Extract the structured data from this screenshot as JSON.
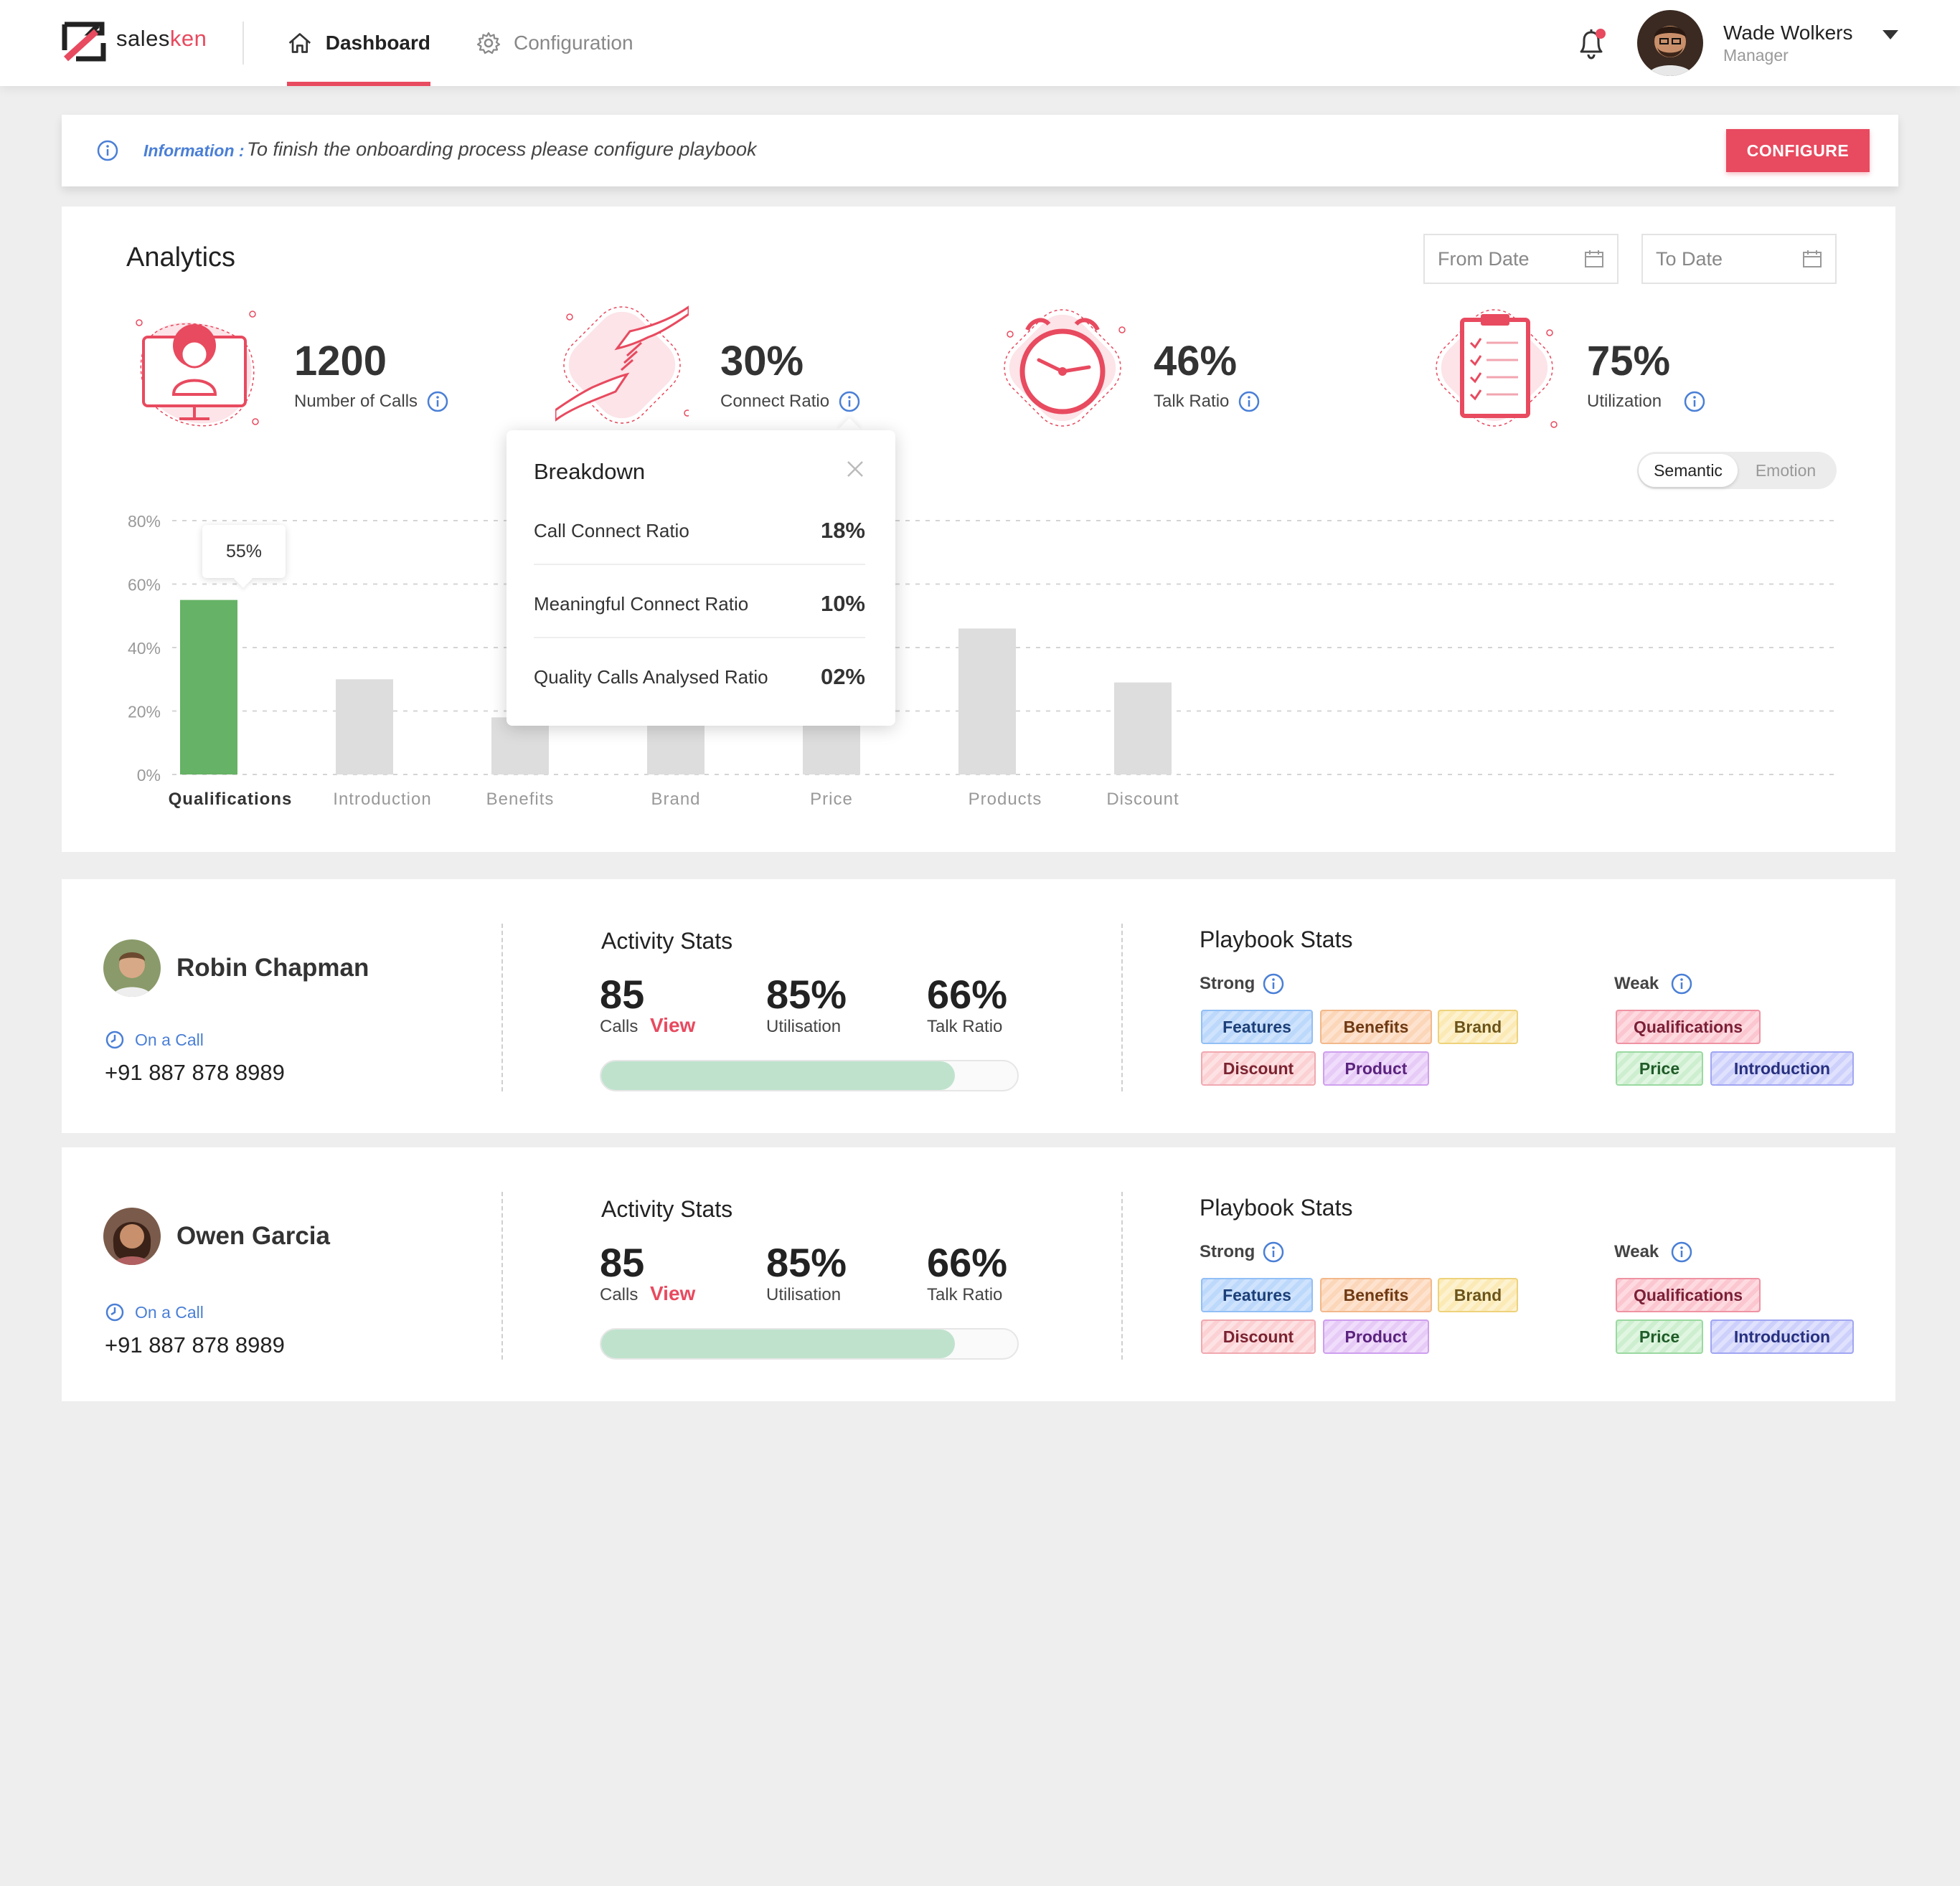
{
  "app": {
    "brand": {
      "part1": "sales",
      "part2": "ken"
    },
    "nav": {
      "dashboard": "Dashboard",
      "configuration": "Configuration"
    },
    "user": {
      "name": "Wade Wolkers",
      "role": "Manager"
    }
  },
  "banner": {
    "label": "Information :",
    "text": "To finish the onboarding process please configure playbook",
    "button": "CONFIGURE"
  },
  "analytics": {
    "title": "Analytics",
    "from_placeholder": "From Date",
    "to_placeholder": "To Date",
    "kpis": [
      {
        "value": "1200",
        "label": "Number of Calls",
        "icon": "headset-agent-icon"
      },
      {
        "value": "30%",
        "label": "Connect Ratio",
        "icon": "handshake-icon"
      },
      {
        "value": "46%",
        "label": "Talk Ratio",
        "icon": "clock-icon"
      },
      {
        "value": "75%",
        "label": "Utilization",
        "icon": "checklist-icon"
      }
    ],
    "toggle": {
      "semantic": "Semantic",
      "emotion": "Emotion",
      "selected": "Semantic"
    },
    "breakdown": {
      "title": "Breakdown",
      "rows": [
        {
          "label": "Call Connect Ratio",
          "value": "18%"
        },
        {
          "label": "Meaningful Connect Ratio",
          "value": "10%"
        },
        {
          "label": "Quality Calls Analysed Ratio",
          "value": "02%"
        }
      ]
    },
    "tooltip": "55%"
  },
  "chart_data": {
    "type": "bar",
    "categories": [
      "Qualifications",
      "Introduction",
      "Benefits",
      "Brand",
      "Price",
      "Products",
      "Discount"
    ],
    "values": [
      55,
      30,
      18,
      17,
      17,
      46,
      29
    ],
    "highlighted": "Qualifications",
    "yticks": [
      "0%",
      "20%",
      "40%",
      "60%",
      "80%"
    ],
    "ylim": [
      0,
      80
    ],
    "colors": {
      "highlight": "#66b266",
      "default": "#dddddd"
    },
    "grid": true
  },
  "agents": [
    {
      "name": "Robin Chapman",
      "status": "On a Call",
      "phone": "+91 887 878 8989",
      "activity": {
        "title": "Activity Stats",
        "calls": "85",
        "calls_label": "Calls",
        "view": "View",
        "utilisation": "85%",
        "utilisation_label": "Utilisation",
        "talk": "66%",
        "talk_label": "Talk Ratio",
        "progress": 0.85
      },
      "playbook": {
        "title": "Playbook Stats",
        "strong_label": "Strong",
        "weak_label": "Weak",
        "strong": [
          "Features",
          "Benefits",
          "Brand",
          "Discount",
          "Product"
        ],
        "weak": [
          "Qualifications",
          "Price",
          "Introduction"
        ]
      }
    },
    {
      "name": "Owen Garcia",
      "status": "On a Call",
      "phone": "+91 887 878 8989",
      "activity": {
        "title": "Activity Stats",
        "calls": "85",
        "calls_label": "Calls",
        "view": "View",
        "utilisation": "85%",
        "utilisation_label": "Utilisation",
        "talk": "66%",
        "talk_label": "Talk Ratio",
        "progress": 0.85
      },
      "playbook": {
        "title": "Playbook Stats",
        "strong_label": "Strong",
        "weak_label": "Weak",
        "strong": [
          "Features",
          "Benefits",
          "Brand",
          "Discount",
          "Product"
        ],
        "weak": [
          "Qualifications",
          "Price",
          "Introduction"
        ]
      }
    }
  ],
  "colors": {
    "accent": "#e84a5f",
    "link": "#4a7fd6",
    "progress": "#bfe2cd"
  }
}
